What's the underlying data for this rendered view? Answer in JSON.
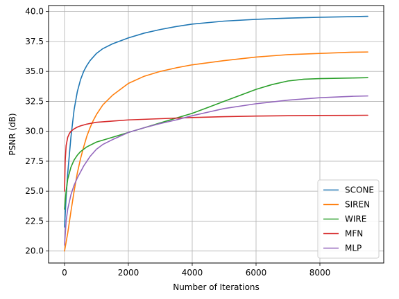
{
  "chart_data": {
    "type": "line",
    "title": "",
    "xlabel": "Number of Iterations",
    "ylabel": "PSNR (dB)",
    "xlim": [
      -500,
      10000
    ],
    "ylim": [
      19.0,
      40.5
    ],
    "xticks": [
      0,
      2000,
      4000,
      6000,
      8000
    ],
    "xtick_labels": [
      "0",
      "2000",
      "4000",
      "6000",
      "8000"
    ],
    "yticks": [
      20.0,
      22.5,
      25.0,
      27.5,
      30.0,
      32.5,
      35.0,
      37.5,
      40.0
    ],
    "ytick_labels": [
      "20.0",
      "22.5",
      "25.0",
      "27.5",
      "30.0",
      "32.5",
      "35.0",
      "37.5",
      "40.0"
    ],
    "grid": true,
    "legend_position": "lower-right",
    "series": [
      {
        "name": "SCONE",
        "color": "#1f77b4",
        "x": [
          0,
          50,
          100,
          200,
          300,
          400,
          500,
          600,
          700,
          800,
          1000,
          1200,
          1500,
          2000,
          2500,
          3000,
          3500,
          4000,
          5000,
          6000,
          7000,
          8000,
          9000,
          9500
        ],
        "y": [
          22.0,
          24.5,
          26.5,
          29.5,
          31.8,
          33.3,
          34.3,
          35.0,
          35.5,
          35.9,
          36.5,
          36.9,
          37.3,
          37.8,
          38.2,
          38.5,
          38.75,
          38.95,
          39.2,
          39.35,
          39.45,
          39.52,
          39.57,
          39.6
        ]
      },
      {
        "name": "SIREN",
        "color": "#ff7f0e",
        "x": [
          0,
          100,
          200,
          300,
          400,
          500,
          600,
          700,
          800,
          900,
          1000,
          1200,
          1500,
          2000,
          2500,
          3000,
          3500,
          4000,
          5000,
          6000,
          7000,
          8000,
          9000,
          9500
        ],
        "y": [
          20.0,
          21.5,
          23.3,
          25.0,
          26.5,
          27.7,
          28.7,
          29.6,
          30.3,
          30.9,
          31.4,
          32.2,
          33.0,
          34.0,
          34.6,
          35.0,
          35.3,
          35.55,
          35.9,
          36.2,
          36.4,
          36.5,
          36.6,
          36.62
        ]
      },
      {
        "name": "WIRE",
        "color": "#2ca02c",
        "x": [
          0,
          50,
          100,
          200,
          300,
          400,
          500,
          700,
          1000,
          1500,
          2000,
          2500,
          3000,
          3500,
          4000,
          4500,
          5000,
          5500,
          6000,
          6500,
          7000,
          7500,
          8000,
          9000,
          9500
        ],
        "y": [
          23.5,
          25.0,
          26.0,
          27.0,
          27.6,
          28.0,
          28.3,
          28.7,
          29.1,
          29.5,
          29.9,
          30.3,
          30.7,
          31.1,
          31.5,
          32.0,
          32.5,
          33.0,
          33.5,
          33.9,
          34.2,
          34.35,
          34.4,
          34.45,
          34.48
        ]
      },
      {
        "name": "MFN",
        "color": "#d62728",
        "x": [
          0,
          20,
          50,
          100,
          150,
          200,
          300,
          400,
          500,
          700,
          1000,
          1500,
          2000,
          3000,
          4000,
          5000,
          6000,
          7000,
          8000,
          9000,
          9500
        ],
        "y": [
          25.0,
          27.5,
          28.8,
          29.5,
          29.8,
          30.0,
          30.2,
          30.35,
          30.45,
          30.6,
          30.75,
          30.85,
          30.95,
          31.05,
          31.15,
          31.22,
          31.27,
          31.3,
          31.32,
          31.33,
          31.34
        ]
      },
      {
        "name": "MLP",
        "color": "#9467bd",
        "x": [
          0,
          50,
          100,
          200,
          300,
          400,
          500,
          600,
          700,
          800,
          1000,
          1200,
          1500,
          2000,
          2500,
          3000,
          3500,
          4000,
          4500,
          5000,
          6000,
          7000,
          8000,
          9000,
          9500
        ],
        "y": [
          20.5,
          22.5,
          23.5,
          24.7,
          25.5,
          26.1,
          26.6,
          27.1,
          27.5,
          27.9,
          28.5,
          28.9,
          29.3,
          29.9,
          30.3,
          30.65,
          30.95,
          31.3,
          31.6,
          31.9,
          32.3,
          32.6,
          32.8,
          32.92,
          32.95
        ]
      }
    ]
  }
}
